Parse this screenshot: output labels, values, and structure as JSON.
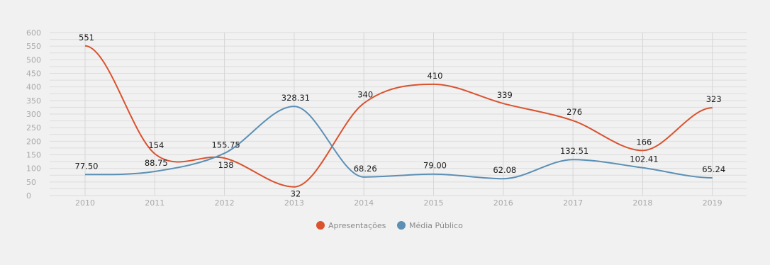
{
  "chart_data": {
    "type": "line",
    "categories": [
      "2010",
      "2011",
      "2012",
      "2013",
      "2014",
      "2015",
      "2016",
      "2017",
      "2018",
      "2019"
    ],
    "series": [
      {
        "name": "Apresentações",
        "color": "#d9532f",
        "values": [
          551,
          154,
          138,
          32,
          340,
          410,
          339,
          276,
          166,
          323
        ],
        "labels": [
          "551",
          "154",
          "138",
          "32",
          "340",
          "410",
          "339",
          "276",
          "166",
          "323"
        ]
      },
      {
        "name": "Média Público",
        "color": "#5b8fb5",
        "values": [
          77.5,
          88.75,
          155.75,
          328.31,
          68.26,
          79.0,
          62.08,
          132.51,
          102.41,
          65.24
        ],
        "labels": [
          "77.50",
          "88.75",
          "155.75",
          "328.31",
          "68.26",
          "79.00",
          "62.08",
          "132.51",
          "102.41",
          "65.24"
        ]
      }
    ],
    "y_ticks": [
      "0",
      "50",
      "100",
      "150",
      "200",
      "250",
      "300",
      "350",
      "400",
      "450",
      "500",
      "550",
      "600"
    ],
    "ylim": [
      0,
      600
    ],
    "grid": true,
    "legend_position": "bottom-center"
  }
}
